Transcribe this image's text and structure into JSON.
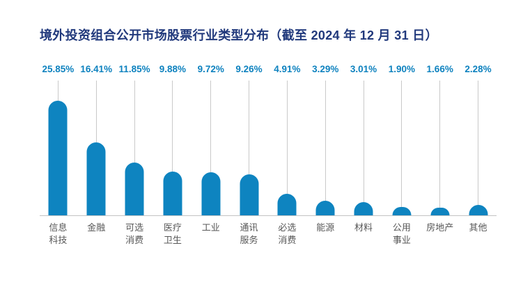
{
  "title": "境外投资组合公开市场股票行业类型分布（截至 2024 年 12 月 31 日）",
  "chart_data": {
    "type": "bar",
    "title": "境外投资组合公开市场股票行业类型分布（截至 2024 年 12 月 31 日）",
    "categories": [
      "信息科技",
      "金融",
      "可选消费",
      "医疗卫生",
      "工业",
      "通讯服务",
      "必选消费",
      "能源",
      "材料",
      "公用事业",
      "房地产",
      "其他"
    ],
    "category_label_lines": [
      [
        "信息",
        "科技"
      ],
      [
        "金融"
      ],
      [
        "可选",
        "消费"
      ],
      [
        "医疗",
        "卫生"
      ],
      [
        "工业"
      ],
      [
        "通讯",
        "服务"
      ],
      [
        "必选",
        "消费"
      ],
      [
        "能源"
      ],
      [
        "材料"
      ],
      [
        "公用",
        "事业"
      ],
      [
        "房地产"
      ],
      [
        "其他"
      ]
    ],
    "values": [
      25.85,
      16.41,
      11.85,
      9.88,
      9.72,
      9.26,
      4.91,
      3.29,
      3.01,
      1.9,
      1.66,
      2.28
    ],
    "value_labels": [
      "25.85%",
      "16.41%",
      "11.85%",
      "9.88%",
      "9.72%",
      "9.26%",
      "4.91%",
      "3.29%",
      "3.01%",
      "1.90%",
      "1.66%",
      "2.28%"
    ],
    "unit": "%",
    "ylim": [
      0,
      26
    ],
    "grid": false,
    "legend": "none",
    "value_label_position": "above-stem",
    "bar_color": "#0e84c0",
    "value_label_color": "#0e82bf",
    "title_color": "#21397c",
    "category_label_color": "#575757",
    "stem_color": "#c9c9c9",
    "baseline_color": "#c3c3c3",
    "background_color": "#ffffff"
  }
}
